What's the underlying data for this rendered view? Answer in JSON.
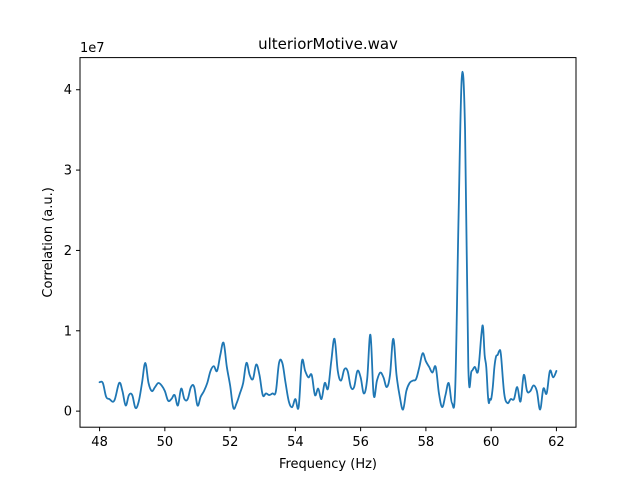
{
  "chart_data": {
    "type": "line",
    "title": "ulteriorMotive.wav",
    "xlabel": "Frequency (Hz)",
    "ylabel": "Correlation (a.u.)",
    "y_offset_label": "1e7",
    "xlim": [
      47.4,
      62.6
    ],
    "ylim": [
      -0.2,
      4.4
    ],
    "x_ticks": [
      48,
      50,
      52,
      54,
      56,
      58,
      60,
      62
    ],
    "x_tick_labels": [
      "48",
      "50",
      "52",
      "54",
      "56",
      "58",
      "60",
      "62"
    ],
    "y_ticks": [
      0,
      1,
      2,
      3,
      4
    ],
    "y_tick_labels": [
      "0",
      "1",
      "2",
      "3",
      "4"
    ],
    "grid": false,
    "line_color": "#1f77b4",
    "series": [
      {
        "x": [
          48.0,
          48.1,
          48.2,
          48.3,
          48.45,
          48.6,
          48.7,
          48.8,
          48.9,
          49.0,
          49.1,
          49.2,
          49.3,
          49.4,
          49.5,
          49.6,
          49.7,
          49.8,
          49.9,
          50.0,
          50.1,
          50.2,
          50.3,
          50.4,
          50.5,
          50.6,
          50.7,
          50.8,
          50.9,
          51.0,
          51.1,
          51.2,
          51.3,
          51.4,
          51.5,
          51.6,
          51.7,
          51.8,
          51.9,
          52.0,
          52.1,
          52.2,
          52.3,
          52.4,
          52.5,
          52.6,
          52.7,
          52.8,
          52.9,
          53.0,
          53.1,
          53.2,
          53.3,
          53.4,
          53.5,
          53.6,
          53.7,
          53.8,
          53.9,
          54.0,
          54.1,
          54.2,
          54.3,
          54.4,
          54.5,
          54.6,
          54.7,
          54.8,
          54.9,
          55.0,
          55.1,
          55.2,
          55.3,
          55.4,
          55.5,
          55.6,
          55.7,
          55.8,
          55.9,
          56.0,
          56.1,
          56.2,
          56.3,
          56.4,
          56.5,
          56.6,
          56.7,
          56.8,
          56.9,
          57.0,
          57.1,
          57.2,
          57.3,
          57.4,
          57.5,
          57.6,
          57.7,
          57.8,
          57.9,
          58.0,
          58.1,
          58.2,
          58.3,
          58.4,
          58.5,
          58.6,
          58.7,
          58.8,
          58.9,
          59.0,
          59.1,
          59.2,
          59.3,
          59.4,
          59.5,
          59.6,
          59.7,
          59.75,
          59.8,
          59.85,
          59.9,
          59.93,
          59.96,
          60.0,
          60.05,
          60.1,
          60.15,
          60.2,
          60.25,
          60.3,
          60.4,
          60.5,
          60.6,
          60.7,
          60.8,
          60.9,
          61.0,
          61.1,
          61.2,
          61.3,
          61.4,
          61.5,
          61.6,
          61.7,
          61.8,
          61.9,
          62.0
        ],
        "values": [
          0.36,
          0.35,
          0.18,
          0.15,
          0.13,
          0.35,
          0.25,
          0.07,
          0.2,
          0.2,
          0.04,
          0.12,
          0.35,
          0.6,
          0.35,
          0.25,
          0.3,
          0.35,
          0.32,
          0.25,
          0.13,
          0.15,
          0.2,
          0.07,
          0.28,
          0.15,
          0.15,
          0.3,
          0.3,
          0.07,
          0.18,
          0.25,
          0.35,
          0.5,
          0.56,
          0.5,
          0.7,
          0.85,
          0.55,
          0.32,
          0.04,
          0.1,
          0.22,
          0.35,
          0.6,
          0.45,
          0.4,
          0.58,
          0.45,
          0.2,
          0.22,
          0.2,
          0.22,
          0.24,
          0.6,
          0.6,
          0.35,
          0.12,
          0.05,
          0.15,
          0.05,
          0.62,
          0.5,
          0.42,
          0.45,
          0.2,
          0.28,
          0.15,
          0.35,
          0.28,
          0.62,
          0.9,
          0.5,
          0.38,
          0.52,
          0.5,
          0.3,
          0.3,
          0.5,
          0.42,
          0.22,
          0.4,
          0.95,
          0.2,
          0.38,
          0.48,
          0.42,
          0.3,
          0.45,
          0.9,
          0.45,
          0.18,
          0.02,
          0.25,
          0.35,
          0.38,
          0.4,
          0.55,
          0.72,
          0.62,
          0.55,
          0.48,
          0.55,
          0.22,
          0.05,
          0.2,
          0.35,
          0.1,
          0.3,
          2.4,
          4.15,
          3.5,
          0.55,
          0.5,
          0.55,
          0.5,
          0.95,
          1.05,
          0.7,
          0.55,
          0.2,
          0.1,
          0.15,
          0.15,
          0.3,
          0.55,
          0.68,
          0.7,
          0.75,
          0.7,
          0.22,
          0.1,
          0.15,
          0.15,
          0.3,
          0.12,
          0.45,
          0.25,
          0.25,
          0.32,
          0.25,
          0.02,
          0.28,
          0.22,
          0.5,
          0.42,
          0.5
        ]
      }
    ]
  }
}
